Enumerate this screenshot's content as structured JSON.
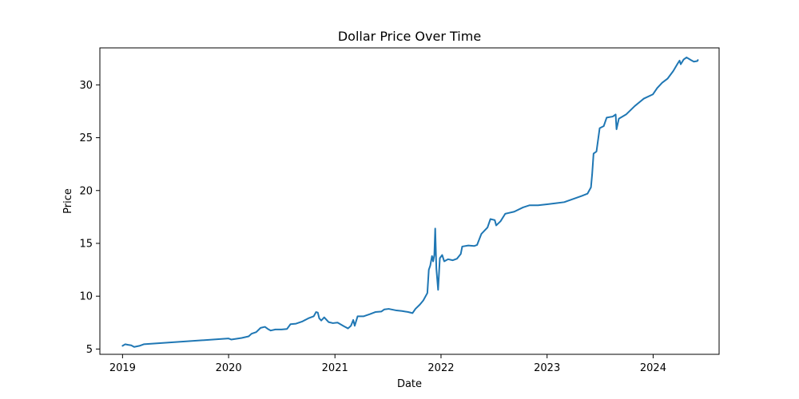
{
  "chart_data": {
    "type": "line",
    "title": "Dollar Price Over Time",
    "xlabel": "Date",
    "ylabel": "Price",
    "x_axis_type": "date",
    "xlim": [
      "2018-10-15",
      "2024-08-15"
    ],
    "ylim": [
      4.5,
      33.5
    ],
    "x_ticks": [
      "2019",
      "2020",
      "2021",
      "2022",
      "2023",
      "2024"
    ],
    "y_ticks": [
      5,
      10,
      15,
      20,
      25,
      30
    ],
    "grid": false,
    "legend": "none",
    "series": [
      {
        "color": "#1f77b4",
        "points": [
          [
            "2019-01-01",
            5.3
          ],
          [
            "2019-01-10",
            5.45
          ],
          [
            "2019-01-20",
            5.4
          ],
          [
            "2019-01-31",
            5.35
          ],
          [
            "2019-02-10",
            5.2
          ],
          [
            "2019-02-28",
            5.3
          ],
          [
            "2019-03-15",
            5.45
          ],
          [
            "2020-01-01",
            6.0
          ],
          [
            "2020-01-10",
            5.9
          ],
          [
            "2020-02-15",
            6.05
          ],
          [
            "2020-03-10",
            6.2
          ],
          [
            "2020-03-20",
            6.45
          ],
          [
            "2020-04-05",
            6.6
          ],
          [
            "2020-04-20",
            7.0
          ],
          [
            "2020-05-05",
            7.1
          ],
          [
            "2020-05-15",
            6.9
          ],
          [
            "2020-05-25",
            6.75
          ],
          [
            "2020-06-10",
            6.85
          ],
          [
            "2020-07-01",
            6.85
          ],
          [
            "2020-07-20",
            6.9
          ],
          [
            "2020-08-01",
            7.35
          ],
          [
            "2020-08-20",
            7.4
          ],
          [
            "2020-09-10",
            7.6
          ],
          [
            "2020-10-01",
            7.9
          ],
          [
            "2020-10-20",
            8.1
          ],
          [
            "2020-10-28",
            8.5
          ],
          [
            "2020-11-03",
            8.45
          ],
          [
            "2020-11-08",
            7.9
          ],
          [
            "2020-11-15",
            7.7
          ],
          [
            "2020-11-25",
            8.0
          ],
          [
            "2020-12-10",
            7.55
          ],
          [
            "2020-12-25",
            7.45
          ],
          [
            "2021-01-10",
            7.5
          ],
          [
            "2021-02-01",
            7.15
          ],
          [
            "2021-02-15",
            6.95
          ],
          [
            "2021-02-25",
            7.2
          ],
          [
            "2021-03-05",
            7.75
          ],
          [
            "2021-03-10",
            7.2
          ],
          [
            "2021-03-20",
            8.1
          ],
          [
            "2021-04-10",
            8.1
          ],
          [
            "2021-05-01",
            8.3
          ],
          [
            "2021-05-20",
            8.5
          ],
          [
            "2021-06-10",
            8.55
          ],
          [
            "2021-06-20",
            8.75
          ],
          [
            "2021-07-05",
            8.8
          ],
          [
            "2021-08-01",
            8.65
          ],
          [
            "2021-08-20",
            8.6
          ],
          [
            "2021-09-10",
            8.5
          ],
          [
            "2021-09-25",
            8.4
          ],
          [
            "2021-10-05",
            8.8
          ],
          [
            "2021-10-20",
            9.2
          ],
          [
            "2021-11-01",
            9.6
          ],
          [
            "2021-11-15",
            10.3
          ],
          [
            "2021-11-20",
            12.5
          ],
          [
            "2021-11-25",
            12.9
          ],
          [
            "2021-12-01",
            13.8
          ],
          [
            "2021-12-05",
            13.3
          ],
          [
            "2021-12-09",
            13.9
          ],
          [
            "2021-12-12",
            16.4
          ],
          [
            "2021-12-16",
            12.6
          ],
          [
            "2021-12-22",
            10.6
          ],
          [
            "2021-12-28",
            13.6
          ],
          [
            "2022-01-05",
            13.9
          ],
          [
            "2022-01-12",
            13.3
          ],
          [
            "2022-01-25",
            13.5
          ],
          [
            "2022-02-10",
            13.4
          ],
          [
            "2022-02-25",
            13.55
          ],
          [
            "2022-03-10",
            14.0
          ],
          [
            "2022-03-15",
            14.7
          ],
          [
            "2022-04-05",
            14.8
          ],
          [
            "2022-04-25",
            14.75
          ],
          [
            "2022-05-05",
            14.85
          ],
          [
            "2022-05-20",
            15.9
          ],
          [
            "2022-06-10",
            16.5
          ],
          [
            "2022-06-20",
            17.3
          ],
          [
            "2022-07-05",
            17.2
          ],
          [
            "2022-07-10",
            16.7
          ],
          [
            "2022-07-25",
            17.1
          ],
          [
            "2022-08-10",
            17.8
          ],
          [
            "2022-09-10",
            18.0
          ],
          [
            "2022-10-10",
            18.4
          ],
          [
            "2022-11-01",
            18.6
          ],
          [
            "2022-12-01",
            18.6
          ],
          [
            "2023-01-01",
            18.7
          ],
          [
            "2023-02-01",
            18.8
          ],
          [
            "2023-03-01",
            18.9
          ],
          [
            "2023-04-01",
            19.2
          ],
          [
            "2023-05-01",
            19.5
          ],
          [
            "2023-05-20",
            19.7
          ],
          [
            "2023-06-01",
            20.3
          ],
          [
            "2023-06-05",
            21.5
          ],
          [
            "2023-06-10",
            23.5
          ],
          [
            "2023-06-20",
            23.7
          ],
          [
            "2023-07-01",
            25.9
          ],
          [
            "2023-07-15",
            26.1
          ],
          [
            "2023-07-25",
            26.9
          ],
          [
            "2023-08-15",
            27.0
          ],
          [
            "2023-08-25",
            27.2
          ],
          [
            "2023-08-28",
            25.8
          ],
          [
            "2023-09-05",
            26.8
          ],
          [
            "2023-09-30",
            27.2
          ],
          [
            "2023-10-30",
            28.0
          ],
          [
            "2023-11-30",
            28.7
          ],
          [
            "2023-12-31",
            29.1
          ],
          [
            "2024-01-15",
            29.7
          ],
          [
            "2024-02-01",
            30.2
          ],
          [
            "2024-02-20",
            30.6
          ],
          [
            "2024-03-10",
            31.3
          ],
          [
            "2024-03-25",
            32.0
          ],
          [
            "2024-04-01",
            32.3
          ],
          [
            "2024-04-05",
            31.95
          ],
          [
            "2024-04-15",
            32.4
          ],
          [
            "2024-04-25",
            32.6
          ],
          [
            "2024-05-10",
            32.35
          ],
          [
            "2024-05-20",
            32.2
          ],
          [
            "2024-06-01",
            32.25
          ],
          [
            "2024-06-03",
            32.35
          ]
        ]
      }
    ]
  }
}
